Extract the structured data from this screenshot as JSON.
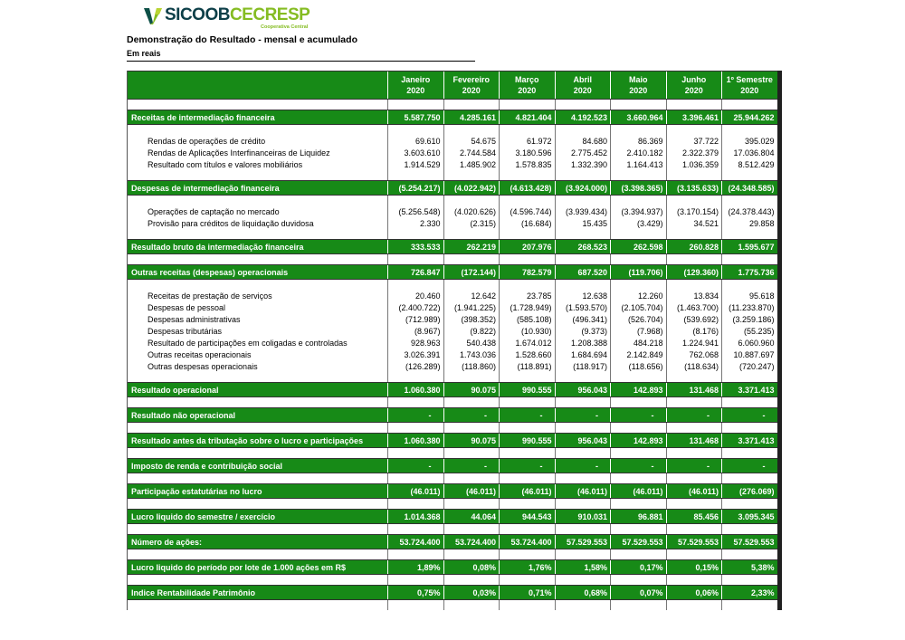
{
  "logo": {
    "sicoob": "SICOOB",
    "cecresp": "CECRESP",
    "tagline": "Cooperativa Central"
  },
  "title": "Demonstração do Resultado - mensal e acumulado",
  "subtitle": "Em  reais",
  "colors": {
    "table_green": "#178a17",
    "brand_dark_teal": "#0d3f48",
    "brand_green": "#85bc22",
    "border_black": "#202020"
  },
  "table": {
    "columns": [
      {
        "month": "Janeiro",
        "year": "2020"
      },
      {
        "month": "Fevereiro",
        "year": "2020"
      },
      {
        "month": "Março",
        "year": "2020"
      },
      {
        "month": "Abril",
        "year": "2020"
      },
      {
        "month": "Maio",
        "year": "2020"
      },
      {
        "month": "Junho",
        "year": "2020"
      },
      {
        "month": "1º Semestre",
        "year": "2020"
      }
    ],
    "rows": [
      {
        "type": "total",
        "label": "Receitas de intermediação financeira",
        "values": [
          "5.587.750",
          "4.285.161",
          "4.821.404",
          "4.192.523",
          "3.660.964",
          "3.396.461",
          "25.944.262"
        ]
      },
      {
        "type": "detail",
        "label": "Rendas de operações de crédito",
        "values": [
          "69.610",
          "54.675",
          "61.972",
          "84.680",
          "86.369",
          "37.722",
          "395.029"
        ]
      },
      {
        "type": "detail",
        "label": "Rendas de Aplicações Interfinanceiras de Liquidez",
        "values": [
          "3.603.610",
          "2.744.584",
          "3.180.596",
          "2.775.452",
          "2.410.182",
          "2.322.379",
          "17.036.804"
        ]
      },
      {
        "type": "detail",
        "label": "Resultado com títulos e valores mobiliários",
        "values": [
          "1.914.529",
          "1.485.902",
          "1.578.835",
          "1.332.390",
          "1.164.413",
          "1.036.359",
          "8.512.429"
        ]
      },
      {
        "type": "total",
        "label": "Despesas de intermediação financeira",
        "values": [
          "(5.254.217)",
          "(4.022.942)",
          "(4.613.428)",
          "(3.924.000)",
          "(3.398.365)",
          "(3.135.633)",
          "(24.348.585)"
        ]
      },
      {
        "type": "detail",
        "label": "Operações de captação no mercado",
        "values": [
          "(5.256.548)",
          "(4.020.626)",
          "(4.596.744)",
          "(3.939.434)",
          "(3.394.937)",
          "(3.170.154)",
          "(24.378.443)"
        ]
      },
      {
        "type": "detail",
        "label": "Provisão para créditos de liquidação duvidosa",
        "values": [
          "2.330",
          "(2.315)",
          "(16.684)",
          "15.435",
          "(3.429)",
          "34.521",
          "29.858"
        ]
      },
      {
        "type": "total",
        "label": "Resultado bruto da intermediação financeira",
        "values": [
          "333.533",
          "262.219",
          "207.976",
          "268.523",
          "262.598",
          "260.828",
          "1.595.677"
        ]
      },
      {
        "type": "total",
        "label": "Outras receitas (despesas) operacionais",
        "values": [
          "726.847",
          "(172.144)",
          "782.579",
          "687.520",
          "(119.706)",
          "(129.360)",
          "1.775.736"
        ]
      },
      {
        "type": "detail",
        "label": "Receitas de prestação de serviços",
        "values": [
          "20.460",
          "12.642",
          "23.785",
          "12.638",
          "12.260",
          "13.834",
          "95.618"
        ]
      },
      {
        "type": "detail",
        "label": "Despesas de pessoal",
        "values": [
          "(2.400.722)",
          "(1.941.225)",
          "(1.728.949)",
          "(1.593.570)",
          "(2.105.704)",
          "(1.463.700)",
          "(11.233.870)"
        ]
      },
      {
        "type": "detail",
        "label": "Despesas administrativas",
        "values": [
          "(712.989)",
          "(398.352)",
          "(585.108)",
          "(496.341)",
          "(526.704)",
          "(539.692)",
          "(3.259.186)"
        ]
      },
      {
        "type": "detail",
        "label": "Despesas tributárias",
        "values": [
          "(8.967)",
          "(9.822)",
          "(10.930)",
          "(9.373)",
          "(7.968)",
          "(8.176)",
          "(55.235)"
        ]
      },
      {
        "type": "detail",
        "label": "Resultado de participações em coligadas e controladas",
        "values": [
          "928.963",
          "540.438",
          "1.674.012",
          "1.208.388",
          "484.218",
          "1.224.941",
          "6.060.960"
        ]
      },
      {
        "type": "detail",
        "label": "Outras receitas operacionais",
        "values": [
          "3.026.391",
          "1.743.036",
          "1.528.660",
          "1.684.694",
          "2.142.849",
          "762.068",
          "10.887.697"
        ]
      },
      {
        "type": "detail",
        "label": "Outras despesas operacionais",
        "values": [
          "(126.289)",
          "(118.860)",
          "(118.891)",
          "(118.917)",
          "(118.656)",
          "(118.634)",
          "(720.247)"
        ]
      },
      {
        "type": "total",
        "label": "Resultado operacional",
        "values": [
          "1.060.380",
          "90.075",
          "990.555",
          "956.043",
          "142.893",
          "131.468",
          "3.371.413"
        ]
      },
      {
        "type": "total",
        "label": "Resultado não operacional",
        "values": [
          "-",
          "-",
          "-",
          "-",
          "-",
          "-",
          "-"
        ]
      },
      {
        "type": "total",
        "label": "Resultado antes da tributação sobre o lucro e participações",
        "values": [
          "1.060.380",
          "90.075",
          "990.555",
          "956.043",
          "142.893",
          "131.468",
          "3.371.413"
        ]
      },
      {
        "type": "total",
        "label": "Imposto de renda e contribuição social",
        "values": [
          "-",
          "-",
          "-",
          "-",
          "-",
          "-",
          "-"
        ]
      },
      {
        "type": "total",
        "label": "Participação estatutárias no lucro",
        "values": [
          "(46.011)",
          "(46.011)",
          "(46.011)",
          "(46.011)",
          "(46.011)",
          "(46.011)",
          "(276.069)"
        ]
      },
      {
        "type": "total",
        "label": "Lucro liquido do semestre / exercício",
        "values": [
          "1.014.368",
          "44.064",
          "944.543",
          "910.031",
          "96.881",
          "85.456",
          "3.095.345"
        ]
      },
      {
        "type": "total",
        "label": "Número de ações:",
        "values": [
          "53.724.400",
          "53.724.400",
          "53.724.400",
          "57.529.553",
          "57.529.553",
          "57.529.553",
          "57.529.553"
        ]
      },
      {
        "type": "total",
        "label": "Lucro liquido do período por lote de 1.000 ações em R$",
        "values": [
          "1,89%",
          "0,08%",
          "1,76%",
          "1,58%",
          "0,17%",
          "0,15%",
          "5,38%"
        ]
      },
      {
        "type": "total",
        "label": "Indice Rentabilidade Patrimônio",
        "values": [
          "0,75%",
          "0,03%",
          "0,71%",
          "0,68%",
          "0,07%",
          "0,06%",
          "2,33%"
        ]
      }
    ]
  }
}
